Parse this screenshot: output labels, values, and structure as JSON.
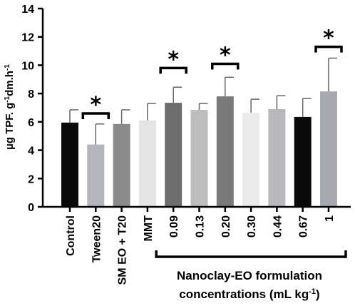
{
  "chart_data": {
    "type": "bar",
    "ylabel_main": "µg TPF. g",
    "ylabel_sup1": "-1",
    "ylabel_mid": "dm.h",
    "ylabel_sup2": "-1",
    "ylim": [
      0,
      14
    ],
    "yticks": [
      "0",
      "2",
      "4",
      "6",
      "8",
      "10",
      "12",
      "14"
    ],
    "categories": [
      "Control",
      "Tween20",
      "SM EO + T20",
      "MMT",
      "0.09",
      "0.13",
      "0.20",
      "0.30",
      "0.44",
      "0.67",
      "1"
    ],
    "values": [
      5.95,
      4.4,
      5.85,
      6.1,
      7.35,
      6.85,
      7.8,
      6.65,
      6.9,
      6.35,
      8.15
    ],
    "errors": [
      0.9,
      1.45,
      1.0,
      1.2,
      1.1,
      0.45,
      1.35,
      0.95,
      0.95,
      1.3,
      2.35
    ],
    "colors": [
      "#0a0a0a",
      "#b4b4bc",
      "#8a8a8a",
      "#e4e4e4",
      "#6e6e6e",
      "#bdbdbd",
      "#7a7a7a",
      "#ebebeb",
      "#b9b9bd",
      "#0a0a0a",
      "#a8a8b0"
    ],
    "significance": [
      {
        "between": [
          1,
          1
        ],
        "label": "*",
        "y": 6.6
      },
      {
        "between": [
          4,
          4
        ],
        "label": "*",
        "y": 9.8
      },
      {
        "between": [
          6,
          6
        ],
        "label": "*",
        "y": 10.1
      },
      {
        "between": [
          10,
          10
        ],
        "label": "*",
        "y": 11.3
      }
    ],
    "group": {
      "from": 4,
      "to": 10,
      "label_line1": "Nanoclay-EO formulation",
      "label_line2_main": "concentrations (mL kg",
      "label_line2_sup": "-1",
      "label_line2_end": ")"
    },
    "grid": false
  }
}
